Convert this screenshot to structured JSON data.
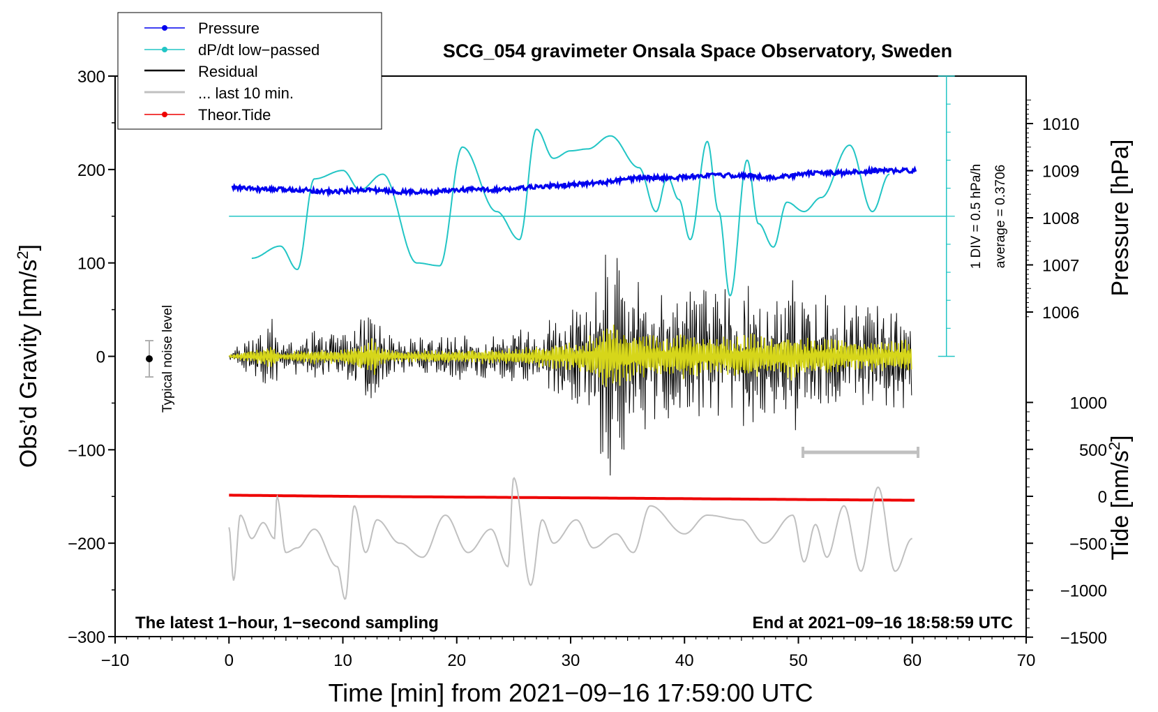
{
  "chart_data": {
    "type": "line",
    "title": "SCG_054 gravimeter Onsala Space Observatory, Sweden",
    "xlabel": "Time [min] from 2021−09−16 17:59:00 UTC",
    "ylabel_left": "Obs’d Gravity [nm/s",
    "ylabel_left_sup": "2",
    "ylabel_left_close": "]",
    "ylabel_right_pressure": "Pressure [hPa]",
    "ylabel_right_tide": "Tide [nm/s",
    "ylabel_right_tide_sup": "2",
    "ylabel_right_tide_close": "]",
    "xlim": [
      -10,
      70
    ],
    "ylim": [
      -300,
      300
    ],
    "x_ticks": [
      "−10",
      "0",
      "10",
      "20",
      "30",
      "40",
      "50",
      "60",
      "70"
    ],
    "y_ticks": [
      "300",
      "200",
      "100",
      "0",
      "−100",
      "−200",
      "−300"
    ],
    "pressure_ticks": [
      "1010",
      "1009",
      "1008",
      "1007",
      "1006"
    ],
    "tide_ticks": [
      "1000",
      "500",
      "0",
      "−500",
      "−1000",
      "−1500"
    ],
    "legend": [
      "Pressure",
      "dP/dt low−passed",
      "Residual",
      "... last 10 min.",
      "Theor.Tide"
    ],
    "noise_label": "Typical noise level",
    "dpdt_scale_label": "1 DIV = 0.5 hPa/h",
    "dpdt_average_label": "average = 0.3706",
    "footer_left": "The latest 1−hour, 1−second sampling",
    "footer_right": "End at 2021−09−16 18:58:59 UTC",
    "colors": {
      "pressure": "#0000ee",
      "dpdt": "#22c5c5",
      "residual": "#000000",
      "residual_filtered": "#d6d61a",
      "last10": "#c0c0c0",
      "tide": "#ee0000"
    },
    "series": [
      {
        "name": "Pressure",
        "unit": "hPa",
        "x": [
          0,
          3,
          6,
          9,
          12,
          15,
          18,
          21,
          24,
          27,
          30,
          33,
          36,
          39,
          42,
          45,
          48,
          51,
          54,
          57,
          60
        ],
        "values": [
          1008.65,
          1008.6,
          1008.6,
          1008.55,
          1008.6,
          1008.55,
          1008.55,
          1008.6,
          1008.6,
          1008.65,
          1008.7,
          1008.75,
          1008.85,
          1008.85,
          1008.9,
          1008.9,
          1008.85,
          1008.95,
          1008.95,
          1009.0,
          1009.0
        ]
      },
      {
        "name": "dP/dt low−passed",
        "unit": "panel y-units (baseline 150 = average)",
        "x": [
          2,
          4.5,
          6,
          7.5,
          10,
          11.5,
          13.5,
          16.5,
          18.5,
          20.5,
          23.5,
          25.5,
          27,
          28.5,
          30,
          31.5,
          33.5,
          36,
          37.5,
          38.5,
          39.5,
          40.5,
          42,
          43,
          44,
          45.5,
          46.5,
          47.8,
          49,
          50.5,
          52,
          54.5,
          56.5,
          58
        ],
        "values": [
          105,
          118,
          93,
          190,
          199,
          178,
          195,
          100,
          97,
          224,
          155,
          125,
          243,
          212,
          220,
          222,
          236,
          202,
          155,
          192,
          168,
          125,
          230,
          155,
          65,
          210,
          142,
          117,
          165,
          155,
          170,
          226,
          155,
          195
        ]
      },
      {
        "name": "Residual envelope",
        "unit": "nm/s^2",
        "x": [
          0,
          3.9,
          4.5,
          7,
          10,
          13,
          13.3,
          15,
          20,
          25,
          30,
          32,
          33.4,
          34,
          36,
          38,
          40,
          42,
          44,
          46,
          48,
          49.8,
          50.3,
          52,
          55,
          58,
          60
        ],
        "values": [
          3,
          45,
          12,
          28,
          28,
          75,
          30,
          20,
          25,
          30,
          52,
          80,
          140,
          112,
          82,
          75,
          88,
          75,
          75,
          80,
          70,
          90,
          70,
          70,
          55,
          60,
          60
        ]
      },
      {
        "name": "... last 10 min.",
        "unit": "filtered, panel offset",
        "x": [
          0,
          0.4,
          1,
          2,
          3,
          4,
          4.2,
          5,
          6,
          7.5,
          9.5,
          10.2,
          11,
          12,
          13,
          15,
          17,
          19,
          21,
          23,
          24.5,
          25,
          26.5,
          27.5,
          28.5,
          30.5,
          32,
          34,
          35.5,
          37,
          40,
          42,
          45,
          47,
          49.5,
          50.5,
          51.5,
          52.5,
          54,
          55.5,
          57,
          58.5,
          60
        ],
        "values": [
          -183,
          -240,
          -170,
          -195,
          -178,
          -195,
          -150,
          -210,
          -205,
          -185,
          -225,
          -260,
          -160,
          -210,
          -175,
          -200,
          -215,
          -170,
          -210,
          -185,
          -225,
          -130,
          -245,
          -175,
          -200,
          -175,
          -205,
          -190,
          -210,
          -160,
          -190,
          -170,
          -175,
          -200,
          -170,
          -220,
          -180,
          -215,
          -160,
          -230,
          -140,
          -230,
          -195
        ]
      },
      {
        "name": "Theor.Tide",
        "unit": "nm/s^2 (right tide axis)",
        "x": [
          0,
          10,
          20,
          30,
          40,
          50,
          60
        ],
        "values": [
          12,
          0,
          -8,
          -16,
          -25,
          -34,
          -42
        ]
      }
    ]
  }
}
